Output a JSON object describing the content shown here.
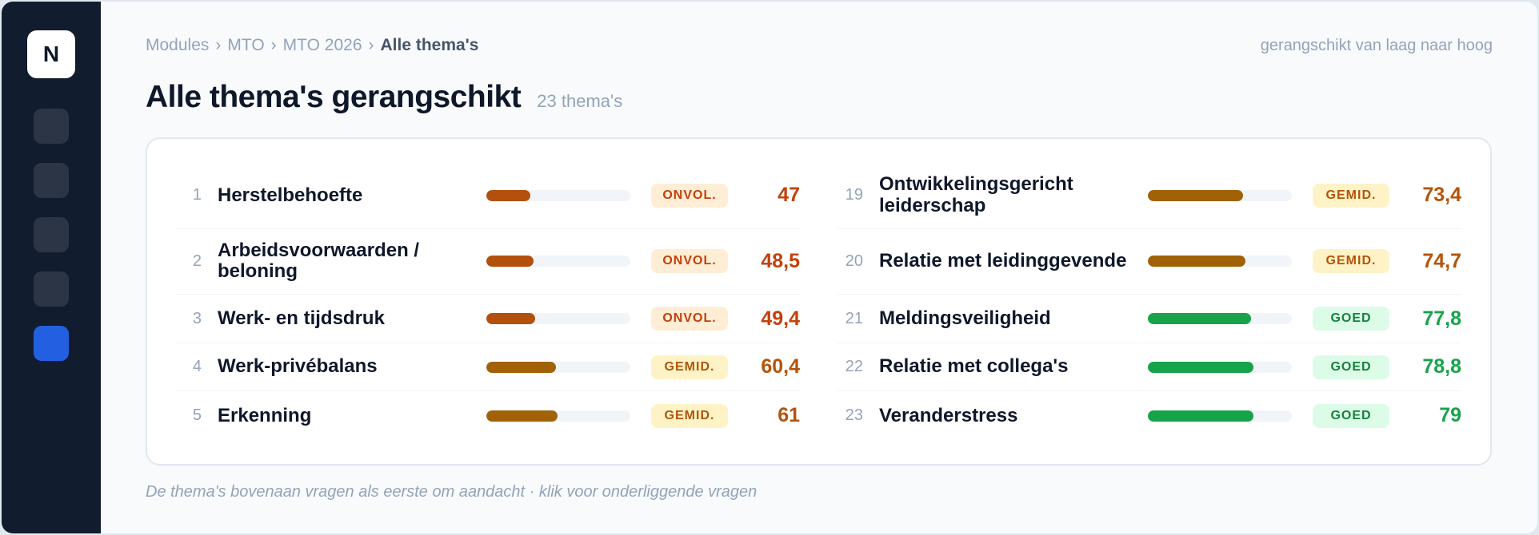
{
  "sidebar": {
    "logo_letter": "N",
    "nav_items": [
      {
        "name": "nav-item-1",
        "active": false
      },
      {
        "name": "nav-item-2",
        "active": false
      },
      {
        "name": "nav-item-3",
        "active": false
      },
      {
        "name": "nav-item-4",
        "active": false
      },
      {
        "name": "nav-item-5",
        "active": true
      }
    ]
  },
  "breadcrumb": {
    "items": [
      "Modules",
      "MTO",
      "MTO 2026"
    ],
    "current": "Alle thema's",
    "separator": "›"
  },
  "sort_note": "gerangschikt van laag naar hoog",
  "page": {
    "title": "Alle thema's gerangschikt",
    "count": "23 thema's"
  },
  "columns": [
    [
      {
        "rank": "1",
        "name": "Herstelbehoefte",
        "badge": "ONVOL.",
        "score": "47",
        "value": 47,
        "level": "onvol",
        "tall": true
      },
      {
        "rank": "2",
        "name": "Arbeidsvoorwaarden / beloning",
        "badge": "ONVOL.",
        "score": "48,5",
        "value": 48.5,
        "level": "onvol",
        "tall": true
      },
      {
        "rank": "3",
        "name": "Werk- en tijdsdruk",
        "badge": "ONVOL.",
        "score": "49,4",
        "value": 49.4,
        "level": "onvol",
        "tall": false
      },
      {
        "rank": "4",
        "name": "Werk-privébalans",
        "badge": "GEMID.",
        "score": "60,4",
        "value": 60.4,
        "level": "gemid",
        "tall": false
      },
      {
        "rank": "5",
        "name": "Erkenning",
        "badge": "GEMID.",
        "score": "61",
        "value": 61,
        "level": "gemid",
        "tall": false
      }
    ],
    [
      {
        "rank": "19",
        "name": "Ontwikkelingsgericht leiderschap",
        "badge": "GEMID.",
        "score": "73,4",
        "value": 73.4,
        "level": "gemid",
        "tall": true
      },
      {
        "rank": "20",
        "name": "Relatie met leidinggevende",
        "badge": "GEMID.",
        "score": "74,7",
        "value": 74.7,
        "level": "gemid",
        "tall": true
      },
      {
        "rank": "21",
        "name": "Meldingsveiligheid",
        "badge": "GOED",
        "score": "77,8",
        "value": 77.8,
        "level": "goed",
        "tall": false
      },
      {
        "rank": "22",
        "name": "Relatie met collega's",
        "badge": "GOED",
        "score": "78,8",
        "value": 78.8,
        "level": "goed",
        "tall": false
      },
      {
        "rank": "23",
        "name": "Veranderstress",
        "badge": "GOED",
        "score": "79",
        "value": 79,
        "level": "goed",
        "tall": false
      }
    ]
  ],
  "footnote": "De thema's bovenaan vragen als eerste om aandacht · klik voor onderliggende vragen"
}
